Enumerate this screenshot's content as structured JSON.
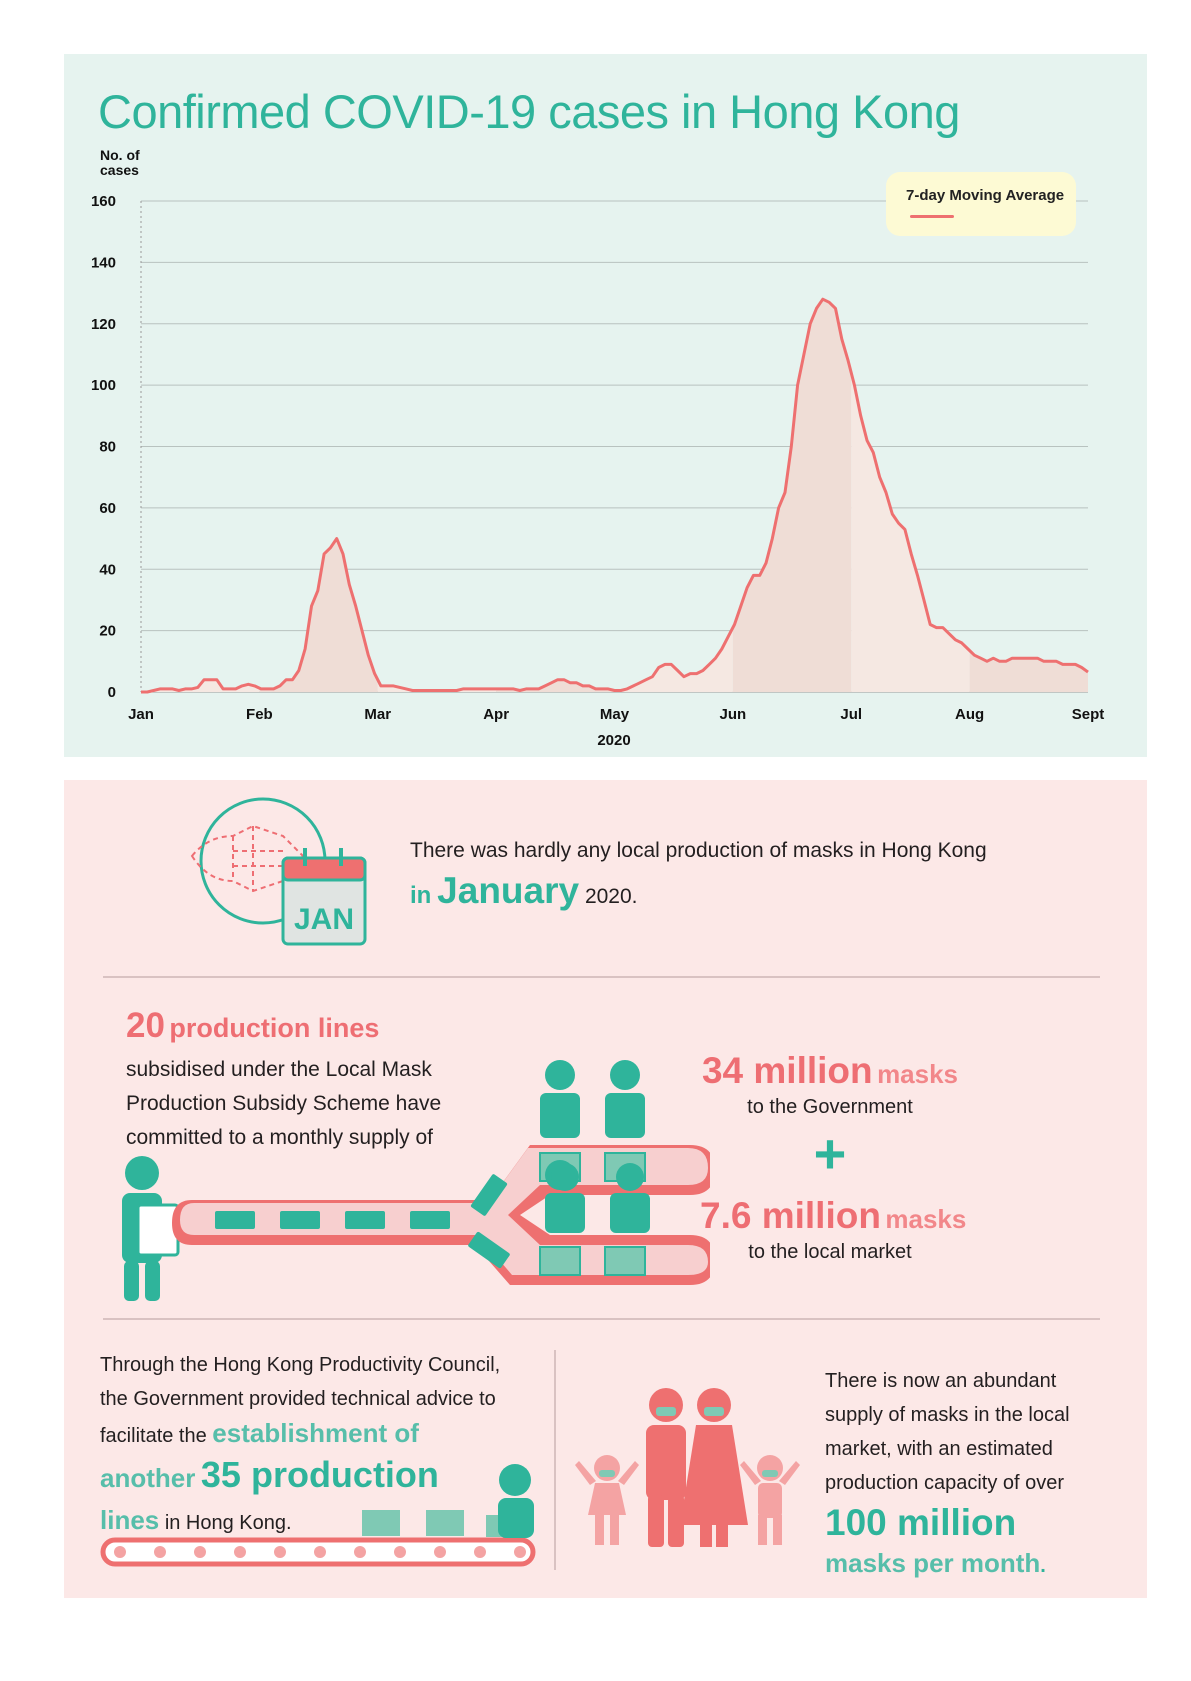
{
  "chart_data": {
    "type": "area",
    "title": "Confirmed COVID-19 cases in Hong Kong",
    "ylabel": "No. of cases",
    "xlabel": "2020",
    "ylim": [
      0,
      160
    ],
    "yticks": [
      "0",
      "20",
      "40",
      "60",
      "80",
      "100",
      "120",
      "140",
      "160"
    ],
    "months": [
      "Jan",
      "Feb",
      "Mar",
      "Apr",
      "May",
      "Jun",
      "Jul",
      "Aug",
      "Sept"
    ],
    "series": [
      {
        "name": "7-day Moving Average",
        "color": "#ee7070",
        "values": [
          0,
          0,
          0.5,
          1,
          1,
          1,
          0.5,
          1,
          1,
          1.5,
          4,
          4,
          4,
          1,
          1,
          1,
          2,
          2.5,
          2,
          1,
          1,
          1,
          2,
          4,
          4,
          7,
          14,
          28,
          33,
          45,
          47,
          50,
          45,
          35,
          28,
          20,
          12,
          6,
          2,
          2,
          2,
          1.5,
          1,
          0.5,
          0.5,
          0.5,
          0.5,
          0.5,
          0.5,
          0.5,
          0.5,
          1,
          1,
          1,
          1,
          1,
          1,
          1,
          1,
          1,
          0.5,
          1,
          1,
          1,
          2,
          3,
          4,
          4,
          3,
          3,
          2,
          2,
          1,
          1,
          1,
          0.5,
          0.5,
          1,
          2,
          3,
          4,
          5,
          8,
          9,
          9,
          7,
          5,
          6,
          6,
          7,
          9,
          11,
          14,
          18,
          22,
          28,
          34,
          38,
          38,
          42,
          50,
          60,
          65,
          80,
          100,
          110,
          120,
          125,
          128,
          127,
          125,
          115,
          108,
          100,
          90,
          82,
          78,
          70,
          65,
          58,
          55,
          53,
          45,
          38,
          30,
          22,
          21,
          21,
          19,
          17,
          16,
          14,
          12,
          11,
          10,
          11,
          10,
          10,
          11,
          11,
          11,
          11,
          11,
          10,
          10,
          10,
          9,
          9,
          9,
          8,
          6.5
        ]
      }
    ],
    "legend": "top-right",
    "grid": true
  },
  "panel_bottom": {
    "jan": {
      "line1": "There was hardly any local production of masks in Hong Kong",
      "in": "in",
      "month": "January",
      "year": "2020.",
      "calendar_label": "JAN"
    },
    "lines": {
      "count": "20",
      "count_label": "production lines",
      "desc1": "subsidised under the Local Mask",
      "desc2": "Production Subsidy Scheme have",
      "desc3": "committed to a monthly supply of"
    },
    "gov": {
      "amount": "34 million",
      "unit": "masks",
      "to": "to the Government",
      "plus": "+"
    },
    "market": {
      "amount": "7.6 million",
      "unit": "masks",
      "to": "to the local market"
    },
    "hkpc": {
      "l1": "Through the Hong Kong Productivity Council,",
      "l2": "the Government provided technical advice to",
      "l3a": "facilitate the",
      "l3b": "establishment of",
      "l4a": "another",
      "l4b": "35 production",
      "l5a": "lines",
      "l5b": "in Hong Kong."
    },
    "supply": {
      "l1": "There is now an abundant",
      "l2": "supply of masks in the local",
      "l3": "market, with an estimated",
      "l4": "production capacity of over",
      "amount": "100 million",
      "unit": "masks per month",
      "dot": "."
    }
  },
  "colors": {
    "teal": "#2fb49b",
    "pink": "#ee6e73",
    "line": "#ee7070"
  }
}
